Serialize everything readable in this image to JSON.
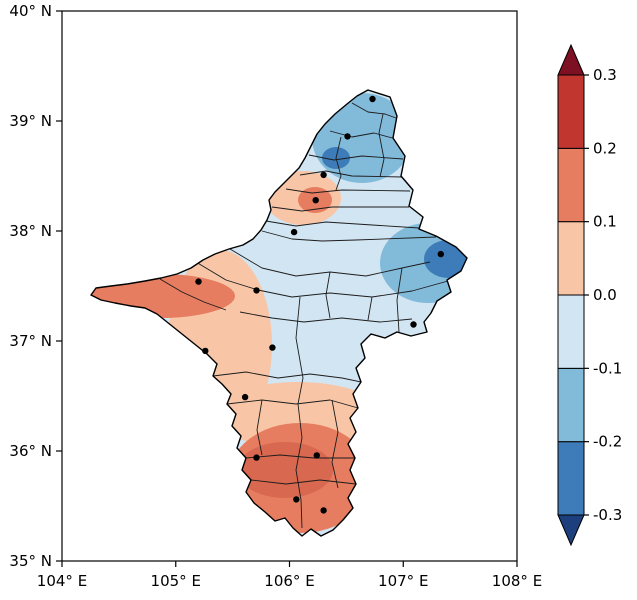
{
  "colors": {
    "background": "#ffffff",
    "axis": "#000000",
    "boundary": "#1c1c1c",
    "station_dot": "#000000",
    "dark_red": "#7e1023",
    "red": "#c23630",
    "orange": "#e67d60",
    "orange_deep": "#d96850",
    "peach": "#f8c6a7",
    "light_blue": "#d2e5f2",
    "mid_blue": "#82bada",
    "blue": "#3d7cb8",
    "dark_blue": "#1d3f7e"
  },
  "chart_data": {
    "type": "heatmap",
    "title": "",
    "description": "Filled-contour value map over the Ningxia region with county boundaries, 16 station dots and a diverging red-blue colorbar",
    "x_axis": {
      "range": [
        104,
        108
      ],
      "ticks": [
        104,
        105,
        106,
        107,
        108
      ],
      "tick_labels": [
        "104° E",
        "105° E",
        "106° E",
        "107° E",
        "108° E"
      ]
    },
    "y_axis": {
      "range": [
        35,
        40
      ],
      "ticks": [
        35,
        36,
        37,
        38,
        39,
        40
      ],
      "tick_labels": [
        "35° N",
        "36° N",
        "37° N",
        "38° N",
        "39° N",
        "40° N"
      ]
    },
    "colorbar": {
      "orientation": "vertical",
      "extend": "both",
      "levels": [
        -0.3,
        -0.2,
        -0.1,
        0.0,
        0.1,
        0.2,
        0.3
      ],
      "tick_labels_top_to_bottom": [
        "0.3",
        "0.2",
        "0.1",
        "0.0",
        "-0.1",
        "-0.2",
        "-0.3"
      ],
      "segment_colors_bottom_to_top": [
        "#3d7cb8",
        "#82bada",
        "#d2e5f2",
        "#f8c6a7",
        "#e67d60",
        "#c23630"
      ],
      "under_color": "#1d3f7e",
      "over_color": "#7e1023"
    },
    "stations": [
      {
        "lon": 106.73,
        "lat": 39.2
      },
      {
        "lon": 106.51,
        "lat": 38.86
      },
      {
        "lon": 106.3,
        "lat": 38.51
      },
      {
        "lon": 106.23,
        "lat": 38.28
      },
      {
        "lon": 106.04,
        "lat": 37.99
      },
      {
        "lon": 107.33,
        "lat": 37.79
      },
      {
        "lon": 105.2,
        "lat": 37.54
      },
      {
        "lon": 105.71,
        "lat": 37.46
      },
      {
        "lon": 107.09,
        "lat": 37.15
      },
      {
        "lon": 105.26,
        "lat": 36.91
      },
      {
        "lon": 105.85,
        "lat": 36.94
      },
      {
        "lon": 105.61,
        "lat": 36.49
      },
      {
        "lon": 105.71,
        "lat": 35.94
      },
      {
        "lon": 106.24,
        "lat": 35.96
      },
      {
        "lon": 106.06,
        "lat": 35.56
      },
      {
        "lon": 106.3,
        "lat": 35.46
      }
    ],
    "zones": [
      {
        "area": "far north strip",
        "value_range": "-0.2 to -0.1"
      },
      {
        "area": "central belt",
        "value_range": "-0.1 to 0.0"
      },
      {
        "area": "east lobe core",
        "value_range": "-0.3 to -0.2"
      },
      {
        "area": "west arm",
        "value_range": "0.1 to 0.2"
      },
      {
        "area": "Helan patch",
        "value_range": "0.1 to 0.2 core, 0.0 to 0.1 ring"
      },
      {
        "area": "southwest",
        "value_range": "0.0 to 0.1"
      },
      {
        "area": "south",
        "value_range": "0.1 to 0.2"
      }
    ]
  }
}
